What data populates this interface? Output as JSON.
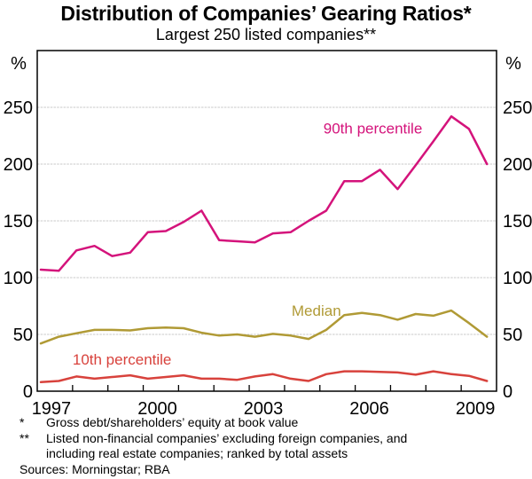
{
  "chart_data": {
    "type": "line",
    "title": "Distribution of Companies’ Gearing Ratios*",
    "subtitle": "Largest 250 listed companies**",
    "x": [
      1997.1,
      1997.61,
      1998.11,
      1998.62,
      1999.12,
      1999.63,
      2000.13,
      2000.64,
      2001.14,
      2001.65,
      2002.15,
      2002.66,
      2003.16,
      2003.67,
      2004.17,
      2004.68,
      2005.18,
      2005.69,
      2006.19,
      2006.7,
      2007.2,
      2007.71,
      2008.21,
      2008.72,
      2009.22,
      2009.73
    ],
    "series": [
      {
        "name": "90th percentile",
        "color": "#D4137B",
        "values": [
          107,
          106,
          124,
          128,
          119,
          122,
          140,
          141,
          149,
          159,
          133,
          132,
          131,
          139,
          140,
          150,
          159,
          185,
          185,
          195,
          178,
          199,
          220,
          242,
          231,
          200
        ]
      },
      {
        "name": "Median",
        "color": "#B09A35",
        "values": [
          42,
          48,
          51,
          54,
          54,
          53.5,
          55.5,
          56,
          55.5,
          51.5,
          49,
          50,
          48,
          50.5,
          49,
          46,
          54,
          67,
          69,
          67,
          63,
          68,
          66.5,
          71,
          60,
          48
        ]
      },
      {
        "name": "10th percentile",
        "color": "#D8423C",
        "values": [
          8,
          9,
          13,
          11,
          12.5,
          14,
          11,
          12.5,
          14,
          11,
          11,
          10,
          13,
          15,
          11,
          9,
          15,
          17.5,
          17.5,
          17,
          16.5,
          14.5,
          17.5,
          15,
          13.5,
          9
        ]
      }
    ],
    "annotations": [
      {
        "text": "90th percentile",
        "x": 2006.5,
        "y": 231.5,
        "color": "#D4137B"
      },
      {
        "text": "Median",
        "x": 2004.9,
        "y": 71,
        "color": "#B09A35"
      },
      {
        "text": "10th percentile",
        "x": 1999.4,
        "y": 28,
        "color": "#D8423C"
      }
    ],
    "x_axis": {
      "min": 1997,
      "max": 2010,
      "tick_years": [
        1998,
        1999,
        2000,
        2001,
        2002,
        2003,
        2004,
        2005,
        2006,
        2007,
        2008,
        2009
      ],
      "label_years": [
        "1997",
        "2000",
        "2003",
        "2006",
        "2009"
      ],
      "label_center_offset": 0.4
    },
    "y_axis": {
      "min": 0,
      "max": 300,
      "ticks": [
        0,
        50,
        100,
        150,
        200,
        250
      ],
      "unit": "%"
    },
    "grid": true,
    "legend": "inline-labels",
    "grid_color": "#C8C8C8",
    "axis_color": "#000000"
  },
  "footnotes": {
    "items": [
      {
        "marker": "*",
        "text": "Gross debt/shareholders’ equity at book value"
      },
      {
        "marker": "**",
        "text": "Listed non-financial companies’ excluding foreign companies, and including real estate companies; ranked by total assets"
      }
    ],
    "sources": "Sources: Morningstar; RBA"
  }
}
